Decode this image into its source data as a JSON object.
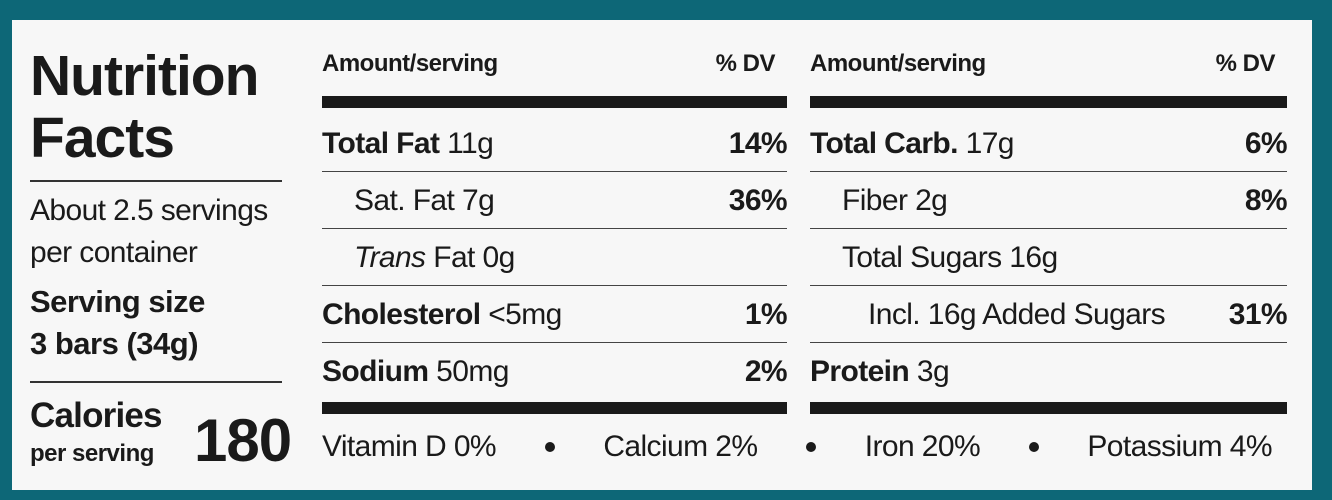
{
  "title": [
    "Nutrition",
    "Facts"
  ],
  "servings": "About 2.5 servings per container",
  "serving_size": {
    "label": "Serving size",
    "value": "3 bars (34g)"
  },
  "calories": {
    "label": "Calories",
    "sublabel": "per serving",
    "value": "180"
  },
  "columns": [
    {
      "header": {
        "amount": "Amount/serving",
        "dv": "% DV"
      },
      "rows": [
        {
          "name": "Total Fat",
          "amount": "11g",
          "dv": "14%"
        },
        {
          "name": "Sat. Fat 7g",
          "dv": "36%"
        },
        {
          "prefix": "Trans",
          "name": "Fat 0g"
        },
        {
          "name": "Cholesterol",
          "amount": "<5mg",
          "dv": "1%"
        },
        {
          "name": "Sodium",
          "amount": "50mg",
          "dv": "2%"
        }
      ]
    },
    {
      "header": {
        "amount": "Amount/serving",
        "dv": "% DV"
      },
      "rows": [
        {
          "name": "Total Carb.",
          "amount": "17g",
          "dv": "6%"
        },
        {
          "name": "Fiber 2g",
          "dv": "8%"
        },
        {
          "name": "Total Sugars 16g"
        },
        {
          "name": "Incl. 16g Added Sugars",
          "dv": "31%"
        },
        {
          "name": "Protein",
          "amount": "3g"
        }
      ]
    }
  ],
  "footer": [
    "Vitamin D 0%",
    "Calcium 2%",
    "Iron 20%",
    "Potassium 4%"
  ]
}
